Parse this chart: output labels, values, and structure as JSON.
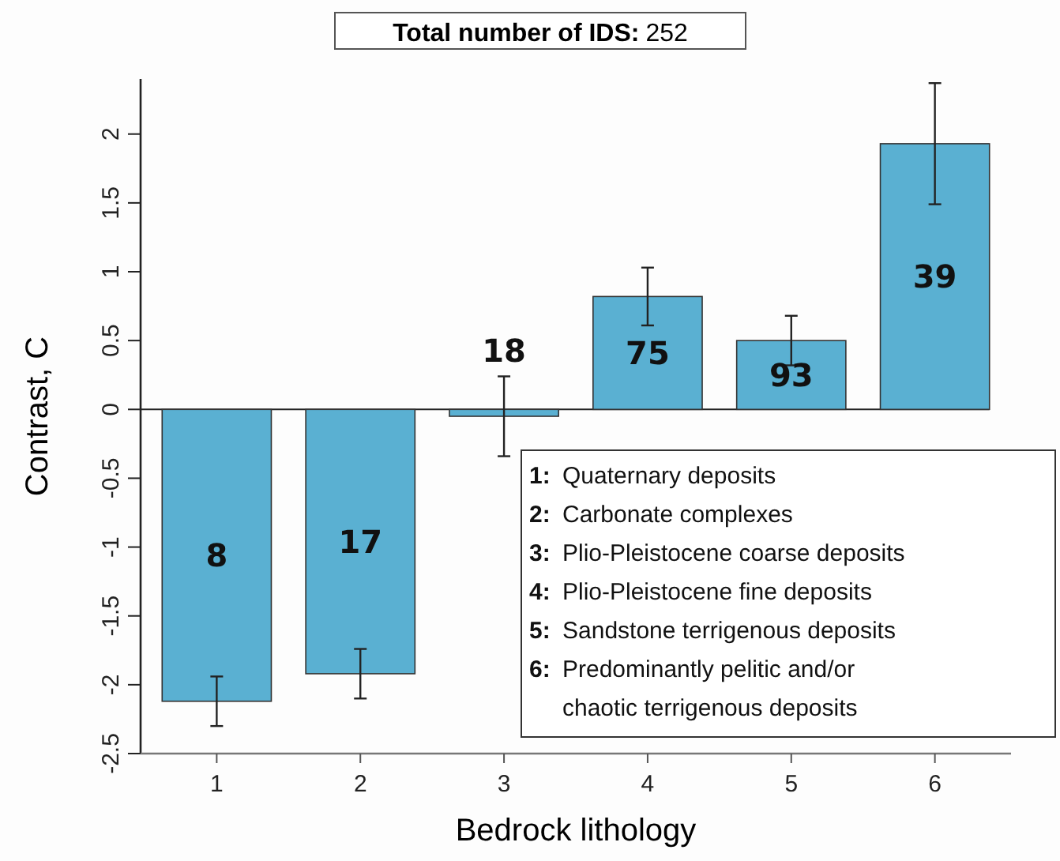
{
  "chart_data": {
    "type": "bar",
    "title": "Total number of IDS: 252",
    "xlabel": "Bedrock lithology",
    "ylabel": "Contrast, C",
    "categories": [
      "1",
      "2",
      "3",
      "4",
      "5",
      "6"
    ],
    "values": [
      -2.12,
      -1.92,
      -0.05,
      0.82,
      0.5,
      1.93
    ],
    "errors": [
      0.18,
      0.18,
      0.29,
      0.21,
      0.18,
      0.44
    ],
    "color": "#5ab0d2",
    "ylim": [
      -2.5,
      2.4
    ],
    "yticks": [
      -2.5,
      -2,
      -1.5,
      -1,
      -0.5,
      0,
      0.5,
      1,
      1.5,
      2
    ],
    "annotations": [
      "8",
      "17",
      "18",
      "75",
      "93",
      "39",
      "1: Quaternary deposits",
      "2: Carbonate complexes",
      "3: Plio-Pleistocene coarse deposits",
      "4: Plio-Pleistocene fine deposits",
      "5: Sandstone terrigenous deposits",
      "6: Predominantly pelitic and/or chaotic terrigenous deposits"
    ]
  }
}
